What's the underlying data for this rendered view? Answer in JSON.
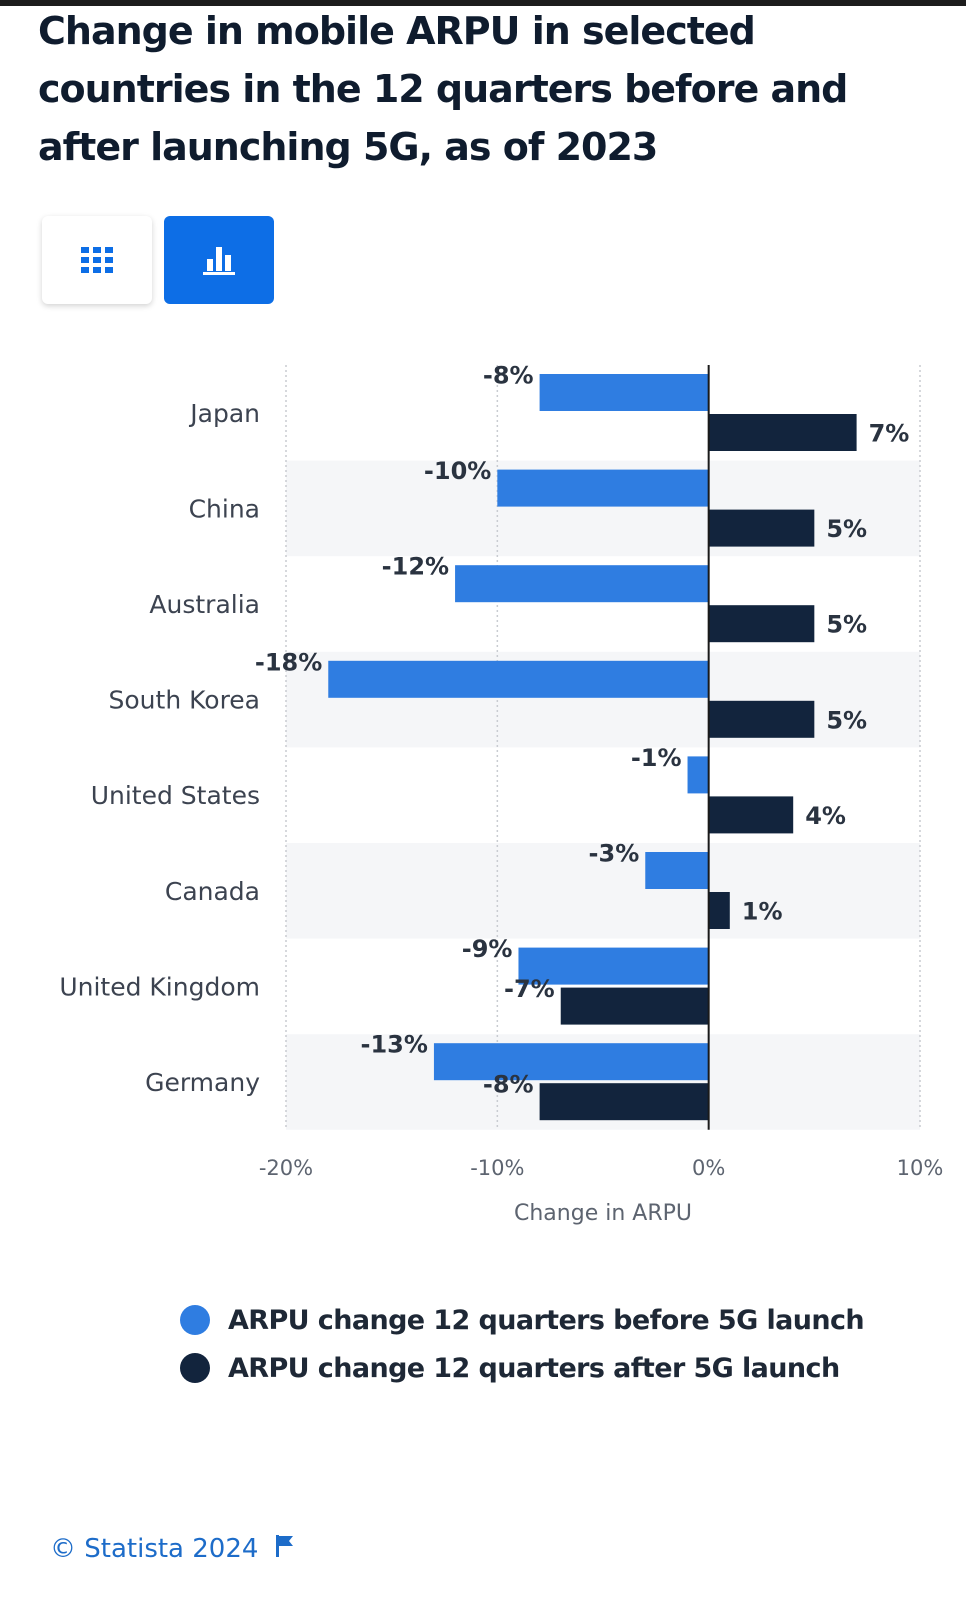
{
  "header": {
    "title": "Change in mobile ARPU in selected countries in the 12 quarters before and after launching 5G, as of 2023"
  },
  "view_tabs": [
    {
      "id": "table",
      "icon": "table-grid-icon",
      "active": false
    },
    {
      "id": "chart",
      "icon": "bar-chart-icon",
      "active": true
    }
  ],
  "colors": {
    "before": "#2f7de1",
    "after": "#12243d",
    "accent": "#0d6ee6"
  },
  "chart_data": {
    "type": "bar",
    "orientation": "horizontal",
    "categories": [
      "Japan",
      "China",
      "Australia",
      "South Korea",
      "United States",
      "Canada",
      "United Kingdom",
      "Germany"
    ],
    "series": [
      {
        "name": "ARPU change 12 quarters before 5G launch",
        "values": [
          -8,
          -10,
          -12,
          -18,
          -1,
          -3,
          -9,
          -13
        ],
        "labels": [
          "-8%",
          "-10%",
          "-12%",
          "-18%",
          "-1%",
          "-3%",
          "-9%",
          "-13%"
        ]
      },
      {
        "name": "ARPU change 12 quarters after 5G launch",
        "values": [
          7,
          5,
          5,
          5,
          4,
          1,
          -7,
          -8
        ],
        "labels": [
          "7%",
          "5%",
          "5%",
          "5%",
          "4%",
          "1%",
          "-7%",
          "-8%"
        ]
      }
    ],
    "xlabel": "Change in ARPU",
    "xlim": [
      -20,
      10
    ],
    "xticks": [
      -20,
      -10,
      0,
      10
    ],
    "xtick_labels": [
      "-20%",
      "-10%",
      "0%",
      "10%"
    ],
    "grid": true,
    "legend_position": "bottom"
  },
  "footer": {
    "source": "© Statista 2024",
    "icon": "flag-icon"
  }
}
